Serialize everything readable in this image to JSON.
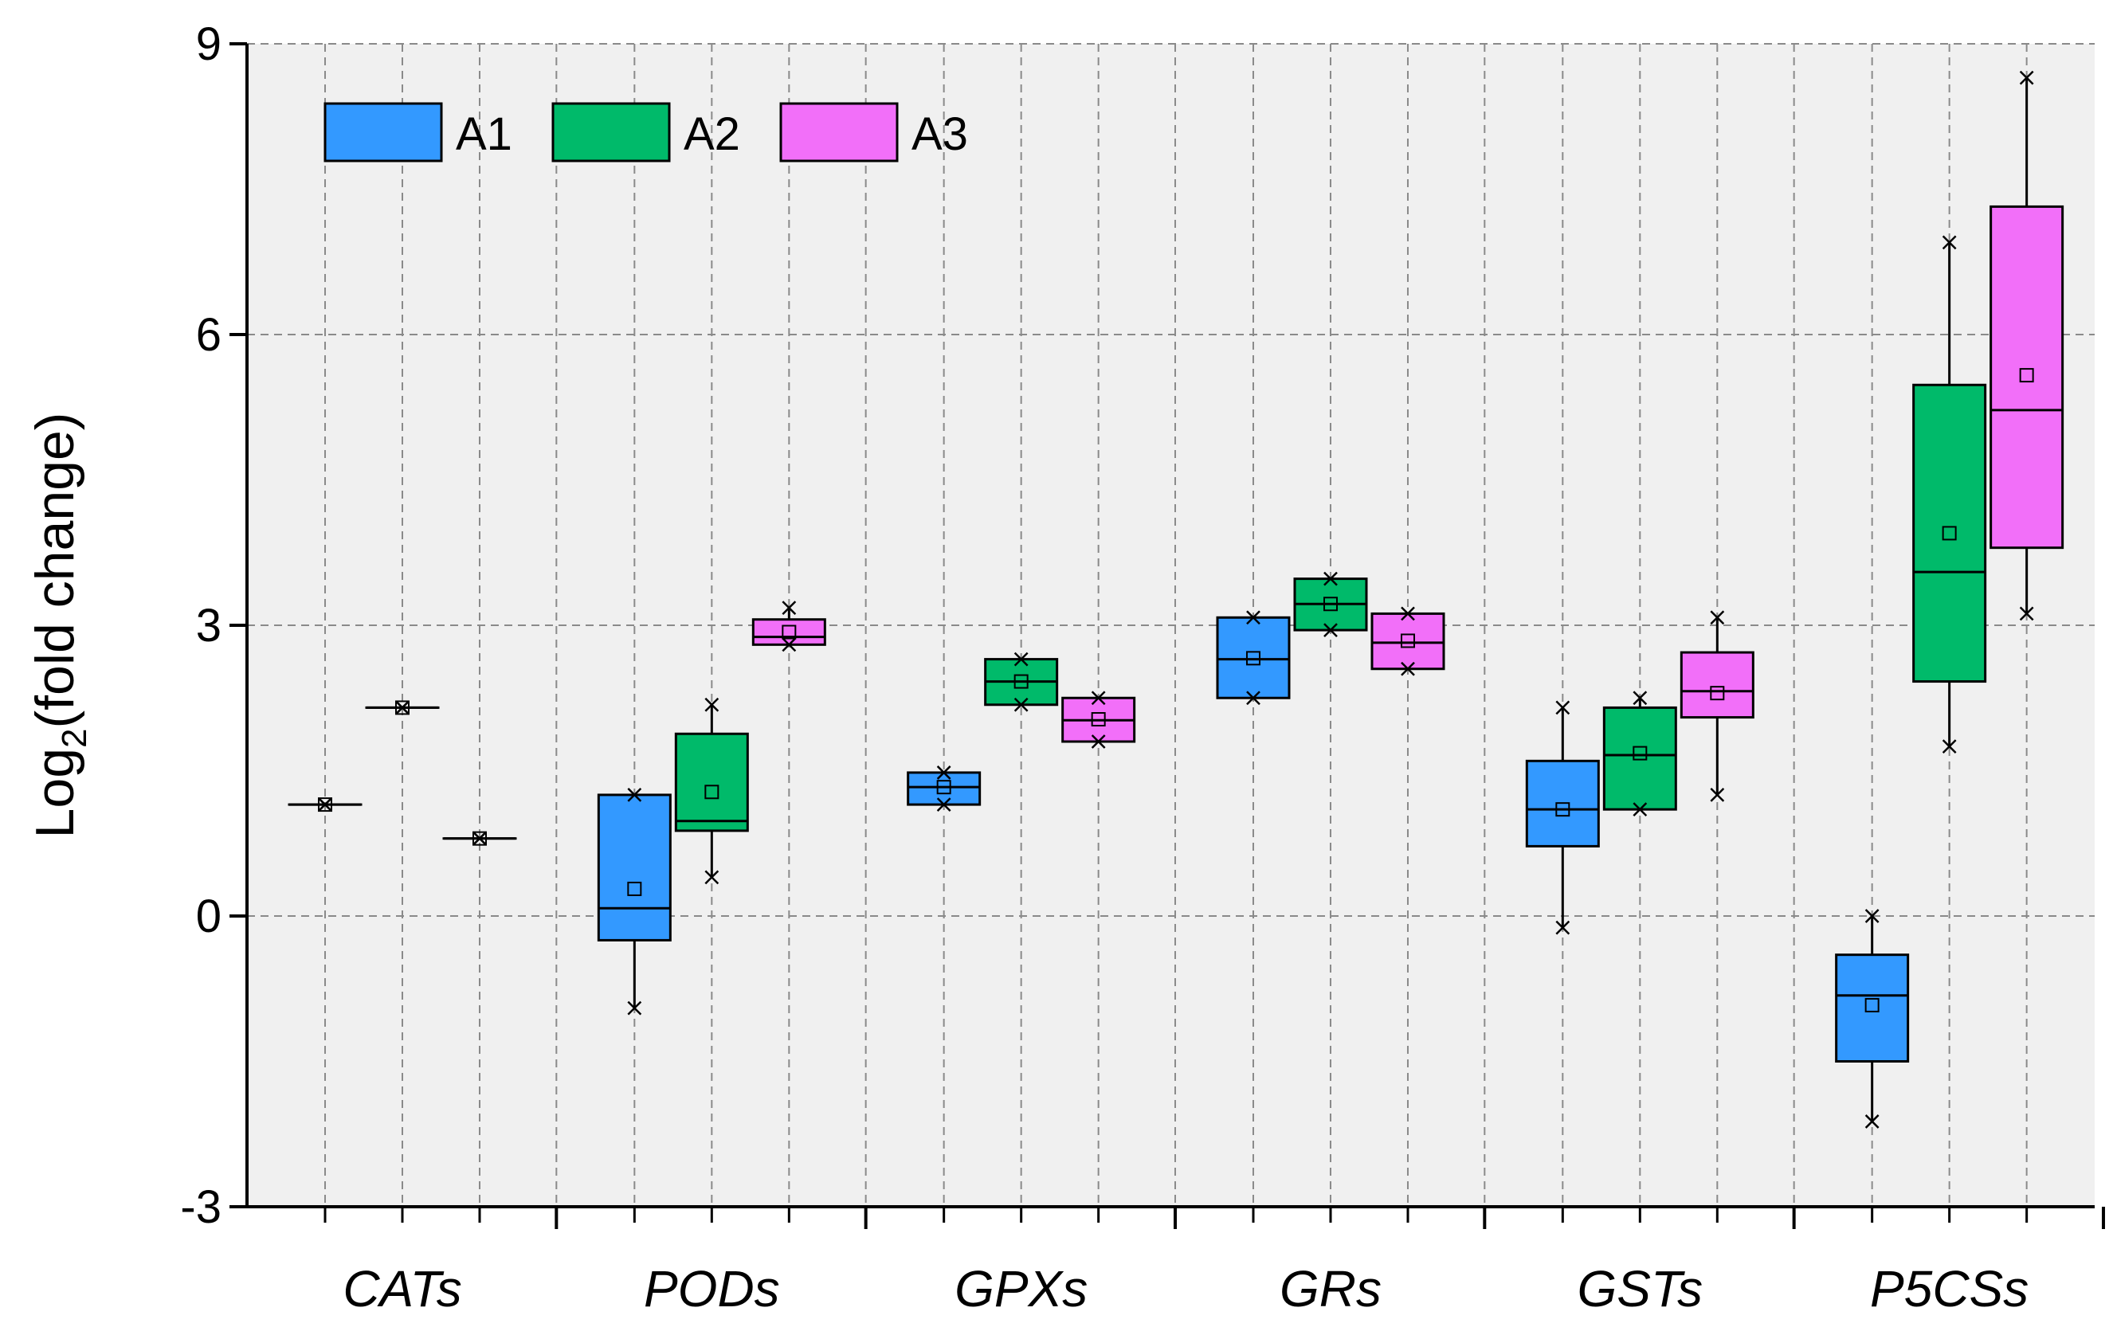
{
  "chart_data": {
    "type": "box",
    "title": "",
    "xlabel": "",
    "ylabel_main": "Log",
    "ylabel_sub": "2",
    "ylabel_rest": "(fold change)",
    "ylim": [
      -3,
      9
    ],
    "yticks": [
      -3,
      0,
      3,
      6,
      9
    ],
    "ytick_labels": [
      "-3",
      "0",
      "3",
      "6",
      "9"
    ],
    "categories": [
      "CATs",
      "PODs",
      "GPXs",
      "GRs",
      "GSTs",
      "P5CSs"
    ],
    "legend_position": "top-left",
    "series": [
      {
        "name": "A1",
        "color": "#3399FF",
        "boxes": [
          {
            "q1": 1.15,
            "median": 1.15,
            "q3": 1.15,
            "mean": 1.15,
            "whisker_low": 1.15,
            "whisker_high": 1.15,
            "min": 1.15,
            "max": 1.15
          },
          {
            "q1": -0.25,
            "median": 0.08,
            "q3": 1.25,
            "mean": 0.28,
            "whisker_low": -0.95,
            "whisker_high": 1.25,
            "min": -0.95,
            "max": 1.25
          },
          {
            "q1": 1.15,
            "median": 1.33,
            "q3": 1.48,
            "mean": 1.33,
            "whisker_low": 1.15,
            "whisker_high": 1.48,
            "min": 1.15,
            "max": 1.48
          },
          {
            "q1": 2.25,
            "median": 2.65,
            "q3": 3.08,
            "mean": 2.66,
            "whisker_low": 2.25,
            "whisker_high": 3.08,
            "min": 2.25,
            "max": 3.08
          },
          {
            "q1": 0.72,
            "median": 1.1,
            "q3": 1.6,
            "mean": 1.1,
            "whisker_low": -0.12,
            "whisker_high": 2.15,
            "min": -0.12,
            "max": 2.15
          },
          {
            "q1": -1.5,
            "median": -0.82,
            "q3": -0.4,
            "mean": -0.92,
            "whisker_low": -2.12,
            "whisker_high": 0.0,
            "min": -2.12,
            "max": 0.0
          }
        ]
      },
      {
        "name": "A2",
        "color": "#00BA6A",
        "boxes": [
          {
            "q1": 2.15,
            "median": 2.15,
            "q3": 2.15,
            "mean": 2.15,
            "whisker_low": 2.15,
            "whisker_high": 2.15,
            "min": 2.15,
            "max": 2.15
          },
          {
            "q1": 0.88,
            "median": 0.98,
            "q3": 1.88,
            "mean": 1.28,
            "whisker_low": 0.4,
            "whisker_high": 2.18,
            "min": 0.4,
            "max": 2.18
          },
          {
            "q1": 2.18,
            "median": 2.42,
            "q3": 2.65,
            "mean": 2.42,
            "whisker_low": 2.18,
            "whisker_high": 2.65,
            "min": 2.18,
            "max": 2.65
          },
          {
            "q1": 2.95,
            "median": 3.22,
            "q3": 3.48,
            "mean": 3.22,
            "whisker_low": 2.95,
            "whisker_high": 3.48,
            "min": 2.95,
            "max": 3.48
          },
          {
            "q1": 1.1,
            "median": 1.66,
            "q3": 2.15,
            "mean": 1.68,
            "whisker_low": 1.1,
            "whisker_high": 2.25,
            "min": 1.1,
            "max": 2.25
          },
          {
            "q1": 2.42,
            "median": 3.55,
            "q3": 5.48,
            "mean": 3.95,
            "whisker_low": 1.75,
            "whisker_high": 6.95,
            "min": 1.75,
            "max": 6.95
          }
        ]
      },
      {
        "name": "A3",
        "color": "#F26FF9",
        "boxes": [
          {
            "q1": 0.8,
            "median": 0.8,
            "q3": 0.8,
            "mean": 0.8,
            "whisker_low": 0.8,
            "whisker_high": 0.8,
            "min": 0.8,
            "max": 0.8
          },
          {
            "q1": 2.8,
            "median": 2.88,
            "q3": 3.06,
            "mean": 2.93,
            "whisker_low": 2.8,
            "whisker_high": 3.18,
            "min": 2.8,
            "max": 3.18
          },
          {
            "q1": 1.8,
            "median": 2.02,
            "q3": 2.25,
            "mean": 2.03,
            "whisker_low": 1.8,
            "whisker_high": 2.25,
            "min": 1.8,
            "max": 2.25
          },
          {
            "q1": 2.55,
            "median": 2.82,
            "q3": 3.12,
            "mean": 2.84,
            "whisker_low": 2.55,
            "whisker_high": 3.12,
            "min": 2.55,
            "max": 3.12
          },
          {
            "q1": 2.05,
            "median": 2.32,
            "q3": 2.72,
            "mean": 2.3,
            "whisker_low": 1.25,
            "whisker_high": 3.08,
            "min": 1.25,
            "max": 3.08
          },
          {
            "q1": 3.8,
            "median": 5.22,
            "q3": 7.32,
            "mean": 5.58,
            "whisker_low": 3.12,
            "whisker_high": 8.65,
            "min": 3.12,
            "max": 8.65
          }
        ]
      }
    ]
  }
}
